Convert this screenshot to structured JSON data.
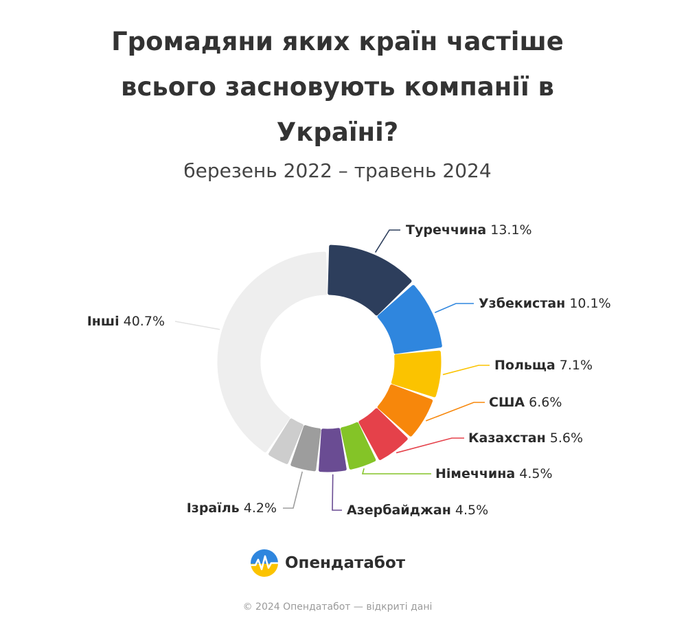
{
  "title_lines": [
    "Громадяни яких країн частіше",
    "всього засновують компанії в",
    "Україні?"
  ],
  "subtitle": "березень 2022 – травень 2024",
  "brand": "Опендатабот",
  "footer": "© 2024 Опендатабот — відкриті дані",
  "chart_data": {
    "type": "pie",
    "title": "Громадяни яких країн частіше всього засновують компанії в Україні?",
    "subtitle": "березень 2022 – травень 2024",
    "unit": "%",
    "labels": [
      "Туреччина",
      "Узбекистан",
      "Польща",
      "США",
      "Казахстан",
      "Німеччина",
      "Азербайджан",
      "Ізраїль",
      "",
      "Інші"
    ],
    "values": [
      13.1,
      10.1,
      7.1,
      6.6,
      5.6,
      4.5,
      4.5,
      4.2,
      null,
      40.7
    ],
    "value_labels": [
      "13.1%",
      "10.1%",
      "7.1%",
      "6.6%",
      "5.6%",
      "4.5%",
      "4.5%",
      "4.2%",
      "",
      "40.7%"
    ],
    "colors": [
      "#2d3e5c",
      "#2f86de",
      "#fbc300",
      "#f7870b",
      "#e5414a",
      "#84c427",
      "#6a4c93",
      "#9d9d9d",
      "#cdcdcd",
      "#eeeeee"
    ]
  }
}
